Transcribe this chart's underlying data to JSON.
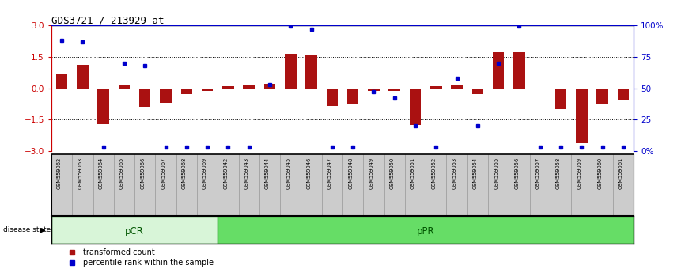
{
  "title": "GDS3721 / 213929_at",
  "samples": [
    "GSM559062",
    "GSM559063",
    "GSM559064",
    "GSM559065",
    "GSM559066",
    "GSM559067",
    "GSM559068",
    "GSM559069",
    "GSM559042",
    "GSM559043",
    "GSM559044",
    "GSM559045",
    "GSM559046",
    "GSM559047",
    "GSM559048",
    "GSM559049",
    "GSM559050",
    "GSM559051",
    "GSM559052",
    "GSM559053",
    "GSM559054",
    "GSM559055",
    "GSM559056",
    "GSM559057",
    "GSM559058",
    "GSM559059",
    "GSM559060",
    "GSM559061"
  ],
  "bar_values": [
    0.7,
    1.1,
    -1.7,
    0.15,
    -0.9,
    -0.7,
    -0.3,
    -0.15,
    0.1,
    0.15,
    0.2,
    1.65,
    1.55,
    -0.85,
    -0.75,
    -0.15,
    -0.15,
    -1.75,
    0.1,
    0.15,
    -0.3,
    1.7,
    1.7,
    0.0,
    -1.0,
    -2.6,
    -0.75,
    -0.55
  ],
  "percentile_values": [
    88,
    87,
    3,
    70,
    68,
    3,
    3,
    3,
    3,
    3,
    53,
    99,
    97,
    3,
    3,
    47,
    42,
    20,
    3,
    58,
    20,
    70,
    99,
    3,
    3,
    3,
    3,
    3
  ],
  "groups": [
    {
      "label": "pCR",
      "start": 0,
      "end": 8,
      "color": "#d8f5d8",
      "edgecolor": "#44aa44"
    },
    {
      "label": "pPR",
      "start": 8,
      "end": 28,
      "color": "#66dd66",
      "edgecolor": "#44aa44"
    }
  ],
  "ylim": [
    -3,
    3
  ],
  "right_ylim": [
    0,
    100
  ],
  "right_yticks": [
    0,
    25,
    50,
    75,
    100
  ],
  "right_yticklabels": [
    "0%",
    "25",
    "50",
    "75",
    "100%"
  ],
  "left_yticks": [
    -3,
    -1.5,
    0,
    1.5,
    3
  ],
  "bar_color": "#aa1111",
  "dot_color": "#0000cc",
  "bg_color": "#ffffff",
  "plot_bg_color": "#ffffff",
  "label_transformed": "transformed count",
  "label_percentile": "percentile rank within the sample",
  "disease_state_label": "disease state",
  "left_ylabel_color": "#cc0000",
  "right_ylabel_color": "#0000cc",
  "sample_box_color": "#cccccc",
  "sample_box_edge": "#888888"
}
